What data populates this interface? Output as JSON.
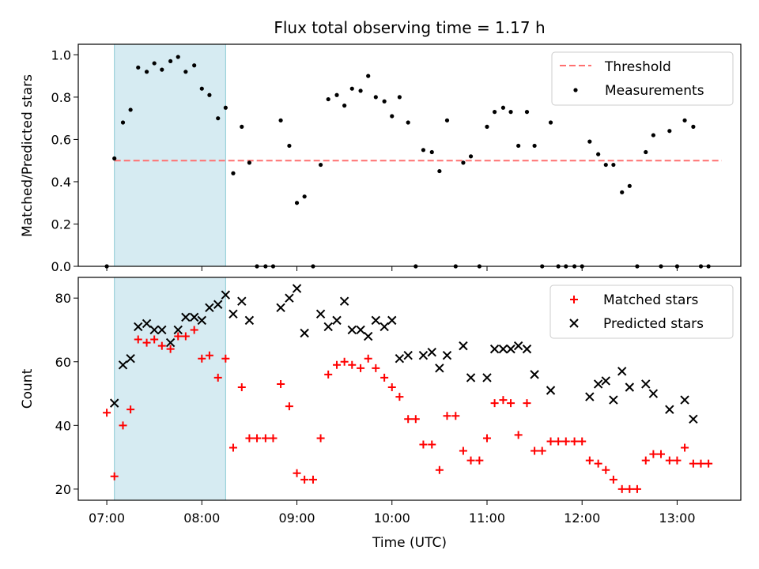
{
  "title": "Flux total observing time = 1.17 h",
  "chart_data": [
    {
      "type": "scatter",
      "ylabel": "Matched/Predicted stars",
      "xlim": [
        6.7,
        13.67
      ],
      "ylim": [
        0,
        1.05
      ],
      "yticks": [
        "0.0",
        "0.2",
        "0.4",
        "0.6",
        "0.8",
        "1.0"
      ],
      "ytick_values": [
        0,
        0.2,
        0.4,
        0.6,
        0.8,
        1.0
      ],
      "shaded_span": [
        7.08,
        8.25
      ],
      "legend_position": "upper-right",
      "threshold": {
        "name": "Threshold",
        "value": 0.5,
        "x_range": [
          7.08,
          13.47
        ]
      },
      "series": [
        {
          "name": "Measurements",
          "color": "#000000",
          "marker": "dot",
          "points": [
            [
              7.0,
              0.0
            ],
            [
              7.08,
              0.51
            ],
            [
              7.17,
              0.68
            ],
            [
              7.25,
              0.74
            ],
            [
              7.33,
              0.94
            ],
            [
              7.42,
              0.92
            ],
            [
              7.5,
              0.96
            ],
            [
              7.58,
              0.93
            ],
            [
              7.67,
              0.97
            ],
            [
              7.75,
              0.99
            ],
            [
              7.83,
              0.92
            ],
            [
              7.92,
              0.95
            ],
            [
              8.0,
              0.84
            ],
            [
              8.08,
              0.81
            ],
            [
              8.17,
              0.7
            ],
            [
              8.25,
              0.75
            ],
            [
              8.33,
              0.44
            ],
            [
              8.42,
              0.66
            ],
            [
              8.5,
              0.49
            ],
            [
              8.58,
              0.0
            ],
            [
              8.67,
              0.0
            ],
            [
              8.75,
              0.0
            ],
            [
              8.83,
              0.69
            ],
            [
              8.92,
              0.57
            ],
            [
              9.0,
              0.3
            ],
            [
              9.08,
              0.33
            ],
            [
              9.17,
              0.0
            ],
            [
              9.25,
              0.48
            ],
            [
              9.33,
              0.79
            ],
            [
              9.42,
              0.81
            ],
            [
              9.5,
              0.76
            ],
            [
              9.58,
              0.84
            ],
            [
              9.67,
              0.83
            ],
            [
              9.75,
              0.9
            ],
            [
              9.83,
              0.8
            ],
            [
              9.92,
              0.78
            ],
            [
              10.0,
              0.71
            ],
            [
              10.08,
              0.8
            ],
            [
              10.17,
              0.68
            ],
            [
              10.25,
              0.0
            ],
            [
              10.33,
              0.55
            ],
            [
              10.42,
              0.54
            ],
            [
              10.5,
              0.45
            ],
            [
              10.58,
              0.69
            ],
            [
              10.67,
              0.0
            ],
            [
              10.75,
              0.49
            ],
            [
              10.83,
              0.52
            ],
            [
              10.92,
              0.0
            ],
            [
              11.0,
              0.66
            ],
            [
              11.08,
              0.73
            ],
            [
              11.17,
              0.75
            ],
            [
              11.25,
              0.73
            ],
            [
              11.33,
              0.57
            ],
            [
              11.42,
              0.73
            ],
            [
              11.5,
              0.57
            ],
            [
              11.58,
              0.0
            ],
            [
              11.67,
              0.68
            ],
            [
              11.75,
              0.0
            ],
            [
              11.83,
              0.0
            ],
            [
              11.92,
              0.0
            ],
            [
              12.0,
              0.0
            ],
            [
              12.08,
              0.59
            ],
            [
              12.17,
              0.53
            ],
            [
              12.25,
              0.48
            ],
            [
              12.33,
              0.48
            ],
            [
              12.42,
              0.35
            ],
            [
              12.5,
              0.38
            ],
            [
              12.58,
              0.0
            ],
            [
              12.67,
              0.54
            ],
            [
              12.75,
              0.62
            ],
            [
              12.83,
              0.0
            ],
            [
              12.92,
              0.64
            ],
            [
              13.0,
              0.0
            ],
            [
              13.08,
              0.69
            ],
            [
              13.17,
              0.66
            ],
            [
              13.25,
              0.0
            ],
            [
              13.33,
              0.0
            ]
          ]
        }
      ]
    },
    {
      "type": "scatter",
      "xlabel": "Time (UTC)",
      "ylabel": "Count",
      "xlim": [
        6.7,
        13.67
      ],
      "ylim": [
        16.5,
        86.5
      ],
      "yticks": [
        "20",
        "40",
        "60",
        "80"
      ],
      "ytick_values": [
        20,
        40,
        60,
        80
      ],
      "xticks": [
        "07:00",
        "08:00",
        "09:00",
        "10:00",
        "11:00",
        "12:00",
        "13:00"
      ],
      "xtick_values": [
        7,
        8,
        9,
        10,
        11,
        12,
        13
      ],
      "shaded_span": [
        7.08,
        8.25
      ],
      "legend_position": "upper-right",
      "series": [
        {
          "name": "Matched stars",
          "color": "#ff0000",
          "marker": "plus",
          "points": [
            [
              7.0,
              44
            ],
            [
              7.08,
              24
            ],
            [
              7.17,
              40
            ],
            [
              7.25,
              45
            ],
            [
              7.33,
              67
            ],
            [
              7.42,
              66
            ],
            [
              7.5,
              67
            ],
            [
              7.58,
              65
            ],
            [
              7.67,
              64
            ],
            [
              7.75,
              68
            ],
            [
              7.83,
              68
            ],
            [
              7.92,
              70
            ],
            [
              8.0,
              61
            ],
            [
              8.08,
              62
            ],
            [
              8.17,
              55
            ],
            [
              8.25,
              61
            ],
            [
              8.33,
              33
            ],
            [
              8.42,
              52
            ],
            [
              8.5,
              36
            ],
            [
              8.58,
              36
            ],
            [
              8.67,
              36
            ],
            [
              8.75,
              36
            ],
            [
              8.83,
              53
            ],
            [
              8.92,
              46
            ],
            [
              9.0,
              25
            ],
            [
              9.08,
              23
            ],
            [
              9.17,
              23
            ],
            [
              9.25,
              36
            ],
            [
              9.33,
              56
            ],
            [
              9.42,
              59
            ],
            [
              9.5,
              60
            ],
            [
              9.58,
              59
            ],
            [
              9.67,
              58
            ],
            [
              9.75,
              61
            ],
            [
              9.83,
              58
            ],
            [
              9.92,
              55
            ],
            [
              10.0,
              52
            ],
            [
              10.08,
              49
            ],
            [
              10.17,
              42
            ],
            [
              10.25,
              42
            ],
            [
              10.33,
              34
            ],
            [
              10.42,
              34
            ],
            [
              10.5,
              26
            ],
            [
              10.58,
              43
            ],
            [
              10.67,
              43
            ],
            [
              10.75,
              32
            ],
            [
              10.83,
              29
            ],
            [
              10.92,
              29
            ],
            [
              11.0,
              36
            ],
            [
              11.08,
              47
            ],
            [
              11.17,
              48
            ],
            [
              11.25,
              47
            ],
            [
              11.33,
              37
            ],
            [
              11.42,
              47
            ],
            [
              11.5,
              32
            ],
            [
              11.58,
              32
            ],
            [
              11.67,
              35
            ],
            [
              11.75,
              35
            ],
            [
              11.83,
              35
            ],
            [
              11.92,
              35
            ],
            [
              12.0,
              35
            ],
            [
              12.08,
              29
            ],
            [
              12.17,
              28
            ],
            [
              12.25,
              26
            ],
            [
              12.33,
              23
            ],
            [
              12.42,
              20
            ],
            [
              12.5,
              20
            ],
            [
              12.58,
              20
            ],
            [
              12.67,
              29
            ],
            [
              12.75,
              31
            ],
            [
              12.83,
              31
            ],
            [
              12.92,
              29
            ],
            [
              13.0,
              29
            ],
            [
              13.08,
              33
            ],
            [
              13.17,
              28
            ],
            [
              13.25,
              28
            ],
            [
              13.33,
              28
            ]
          ]
        },
        {
          "name": "Predicted stars",
          "color": "#000000",
          "marker": "x",
          "points": [
            [
              7.08,
              47
            ],
            [
              7.17,
              59
            ],
            [
              7.25,
              61
            ],
            [
              7.33,
              71
            ],
            [
              7.42,
              72
            ],
            [
              7.5,
              70
            ],
            [
              7.58,
              70
            ],
            [
              7.67,
              66
            ],
            [
              7.75,
              70
            ],
            [
              7.83,
              74
            ],
            [
              7.92,
              74
            ],
            [
              8.0,
              73
            ],
            [
              8.08,
              77
            ],
            [
              8.17,
              78
            ],
            [
              8.25,
              81
            ],
            [
              8.33,
              75
            ],
            [
              8.42,
              79
            ],
            [
              8.5,
              73
            ],
            [
              8.83,
              77
            ],
            [
              8.92,
              80
            ],
            [
              9.0,
              83
            ],
            [
              9.08,
              69
            ],
            [
              9.25,
              75
            ],
            [
              9.33,
              71
            ],
            [
              9.42,
              73
            ],
            [
              9.5,
              79
            ],
            [
              9.58,
              70
            ],
            [
              9.67,
              70
            ],
            [
              9.75,
              68
            ],
            [
              9.83,
              73
            ],
            [
              9.92,
              71
            ],
            [
              10.0,
              73
            ],
            [
              10.08,
              61
            ],
            [
              10.17,
              62
            ],
            [
              10.33,
              62
            ],
            [
              10.42,
              63
            ],
            [
              10.5,
              58
            ],
            [
              10.58,
              62
            ],
            [
              10.75,
              65
            ],
            [
              10.83,
              55
            ],
            [
              11.0,
              55
            ],
            [
              11.08,
              64
            ],
            [
              11.17,
              64
            ],
            [
              11.25,
              64
            ],
            [
              11.33,
              65
            ],
            [
              11.42,
              64
            ],
            [
              11.5,
              56
            ],
            [
              11.67,
              51
            ],
            [
              12.08,
              49
            ],
            [
              12.17,
              53
            ],
            [
              12.25,
              54
            ],
            [
              12.33,
              48
            ],
            [
              12.42,
              57
            ],
            [
              12.5,
              52
            ],
            [
              12.67,
              53
            ],
            [
              12.75,
              50
            ],
            [
              12.92,
              45
            ],
            [
              13.08,
              48
            ],
            [
              13.17,
              42
            ]
          ]
        }
      ]
    }
  ]
}
